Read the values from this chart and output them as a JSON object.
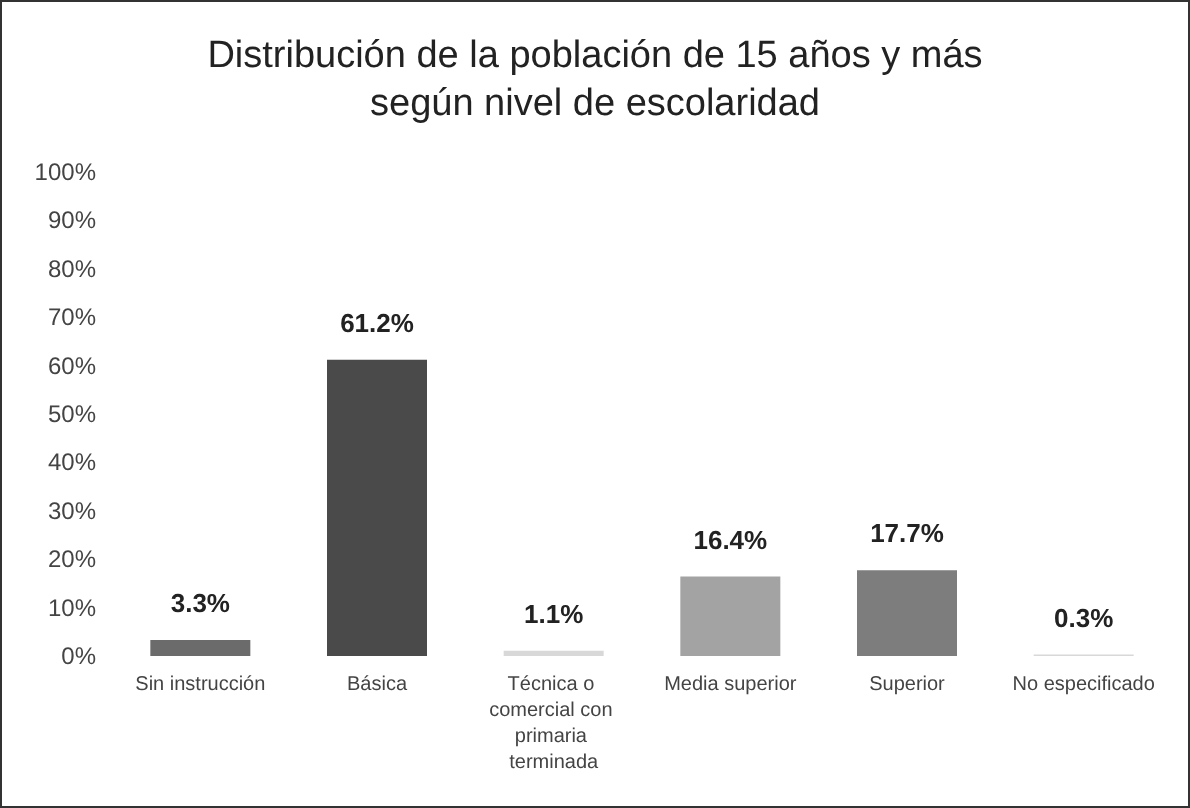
{
  "chart_data": {
    "type": "bar",
    "title": "Distribución de la población de 15 años y más\nsegún nivel de escolaridad",
    "categories": [
      "Sin instrucción",
      "Básica",
      "Técnica o comercial con primaria terminada",
      "Media superior",
      "Superior",
      "No especificado"
    ],
    "values": [
      3.3,
      61.2,
      1.1,
      16.4,
      17.7,
      0.3
    ],
    "colors": [
      "#6b6b6b",
      "#4a4a4a",
      "#d8d8d8",
      "#a3a3a3",
      "#7d7d7d",
      "#d8d8d8"
    ],
    "value_labels": [
      "3.3%",
      "61.2%",
      "1.1%",
      "16.4%",
      "17.7%",
      "0.3%"
    ],
    "ylim": [
      0,
      100
    ],
    "yticks": [
      {
        "value": 0,
        "label": "0%"
      },
      {
        "value": 10,
        "label": "10%"
      },
      {
        "value": 20,
        "label": "20%"
      },
      {
        "value": 30,
        "label": "30%"
      },
      {
        "value": 40,
        "label": "40%"
      },
      {
        "value": 50,
        "label": "50%"
      },
      {
        "value": 60,
        "label": "60%"
      },
      {
        "value": 70,
        "label": "70%"
      },
      {
        "value": 80,
        "label": "80%"
      },
      {
        "value": 90,
        "label": "90%"
      },
      {
        "value": 100,
        "label": "100%"
      }
    ],
    "grid": false
  }
}
